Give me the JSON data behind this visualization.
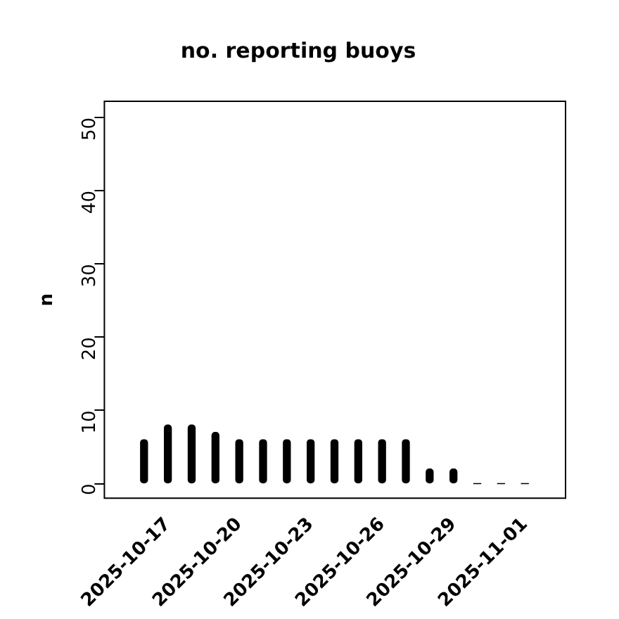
{
  "chart_data": {
    "type": "bar",
    "title": "no. reporting buoys",
    "ylabel": "n",
    "x": [
      "2025-10-16",
      "2025-10-17",
      "2025-10-18",
      "2025-10-19",
      "2025-10-20",
      "2025-10-21",
      "2025-10-22",
      "2025-10-23",
      "2025-10-24",
      "2025-10-25",
      "2025-10-26",
      "2025-10-27",
      "2025-10-28",
      "2025-10-29",
      "2025-10-30",
      "2025-10-31",
      "2025-11-01"
    ],
    "values": [
      6,
      8,
      8,
      7,
      6,
      6,
      6,
      6,
      6,
      6,
      6,
      6,
      2,
      2,
      0,
      0,
      0
    ],
    "color": "#000000",
    "xlim": [
      "2025-10-14T08:00",
      "2025-11-02T17:00"
    ],
    "xticks": [
      "2025-10-17",
      "2025-10-20",
      "2025-10-23",
      "2025-10-26",
      "2025-10-29",
      "2025-11-01"
    ],
    "ylim": [
      -2,
      52.2
    ],
    "yticks": [
      0,
      10,
      20,
      30,
      40,
      50
    ],
    "grid": false,
    "legend": false
  }
}
